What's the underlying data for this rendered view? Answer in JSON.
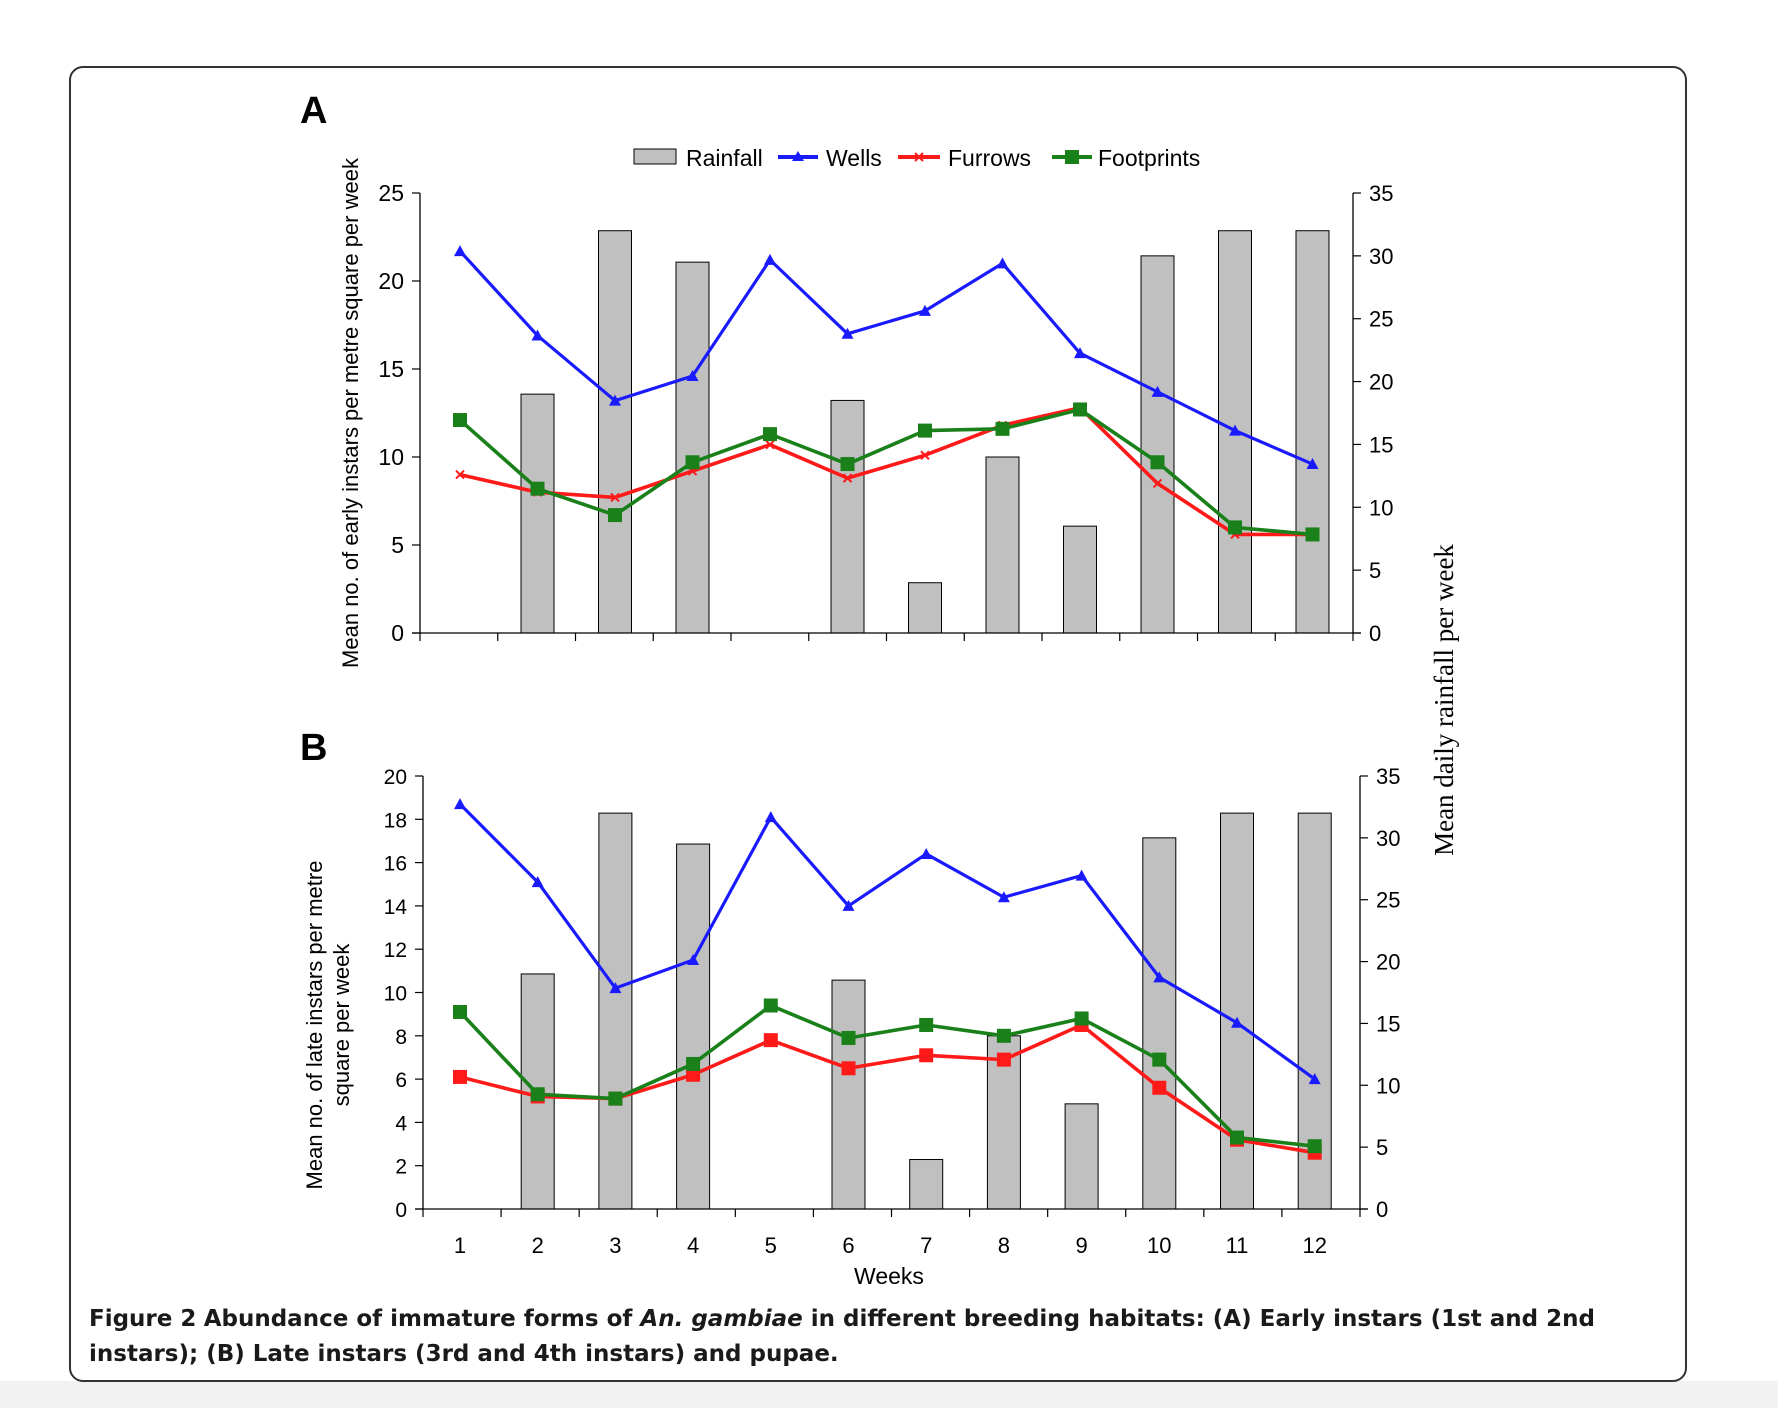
{
  "figure": {
    "caption_label": "Figure 2",
    "caption_text_1": "Abundance of immature forms of ",
    "caption_species": "An. gambiae",
    "caption_text_2": " in different breeding habitats: (A) Early instars (1st and 2nd instars); (B) Late instars (3rd and 4th instars) and pupae."
  },
  "legend": [
    "Rainfall",
    "Wells",
    "Furrows",
    "Footprints"
  ],
  "colors": {
    "rainfall_fill": "#c0c0c0",
    "wells": "#1a1aff",
    "furrows": "#ff1a1a",
    "footprints": "#1a801a"
  },
  "shared_axes": {
    "xlabel": "Weeks",
    "y2label": "Mean daily rainfall per week"
  },
  "chart_data": [
    {
      "panel": "A",
      "type": "bar+line",
      "categories": [
        "1",
        "2",
        "3",
        "4",
        "5",
        "6",
        "7",
        "8",
        "9",
        "10",
        "11",
        "12"
      ],
      "ylabel": "Mean no. of early instars per metre square per week",
      "ylim": [
        0,
        25
      ],
      "yticks": [
        0,
        5,
        10,
        15,
        20,
        25
      ],
      "y2lim": [
        0,
        35
      ],
      "y2ticks": [
        0,
        5,
        10,
        15,
        20,
        25,
        30,
        35
      ],
      "grid": false,
      "legend_position": "top",
      "bars": {
        "name": "Rainfall",
        "axis": "right",
        "values": [
          0,
          19,
          32,
          29.5,
          0,
          18.5,
          4,
          14,
          8.5,
          30,
          32,
          32
        ]
      },
      "series": [
        {
          "name": "Wells",
          "marker": "triangle",
          "values": [
            21.7,
            16.9,
            13.2,
            14.6,
            21.2,
            17.0,
            18.3,
            21.0,
            15.9,
            13.7,
            11.5,
            9.6
          ]
        },
        {
          "name": "Furrows",
          "marker": "x",
          "values": [
            9.0,
            8.0,
            7.7,
            9.2,
            10.7,
            8.8,
            10.1,
            11.8,
            12.8,
            8.5,
            5.6,
            5.6
          ]
        },
        {
          "name": "Footprints",
          "marker": "square",
          "values": [
            12.1,
            8.2,
            6.7,
            9.7,
            11.3,
            9.6,
            11.5,
            11.6,
            12.7,
            9.7,
            6.0,
            5.6
          ]
        }
      ]
    },
    {
      "panel": "B",
      "type": "bar+line",
      "categories": [
        "1",
        "2",
        "3",
        "4",
        "5",
        "6",
        "7",
        "8",
        "9",
        "10",
        "11",
        "12"
      ],
      "ylabel": "Mean no. of late instars per metre square per week",
      "ylim": [
        0,
        20
      ],
      "yticks": [
        0,
        2,
        4,
        6,
        8,
        10,
        12,
        14,
        16,
        18,
        20
      ],
      "y2lim": [
        0,
        35
      ],
      "y2ticks": [
        0,
        5,
        10,
        15,
        20,
        25,
        30,
        35
      ],
      "grid": false,
      "bars": {
        "name": "Rainfall",
        "axis": "right",
        "values": [
          0,
          19,
          32,
          29.5,
          0,
          18.5,
          4,
          14,
          8.5,
          30,
          32,
          32
        ]
      },
      "series": [
        {
          "name": "Wells",
          "marker": "triangle",
          "values": [
            18.7,
            15.1,
            10.2,
            11.5,
            18.1,
            14.0,
            16.4,
            14.4,
            15.4,
            10.7,
            8.6,
            6.0
          ]
        },
        {
          "name": "Furrows",
          "marker": "square",
          "values": [
            6.1,
            5.2,
            5.1,
            6.2,
            7.8,
            6.5,
            7.1,
            6.9,
            8.5,
            5.6,
            3.2,
            2.6
          ]
        },
        {
          "name": "Footprints",
          "marker": "square",
          "values": [
            9.1,
            5.3,
            5.1,
            6.7,
            9.4,
            7.9,
            8.5,
            8.0,
            8.8,
            6.9,
            3.3,
            2.9
          ]
        }
      ]
    }
  ]
}
